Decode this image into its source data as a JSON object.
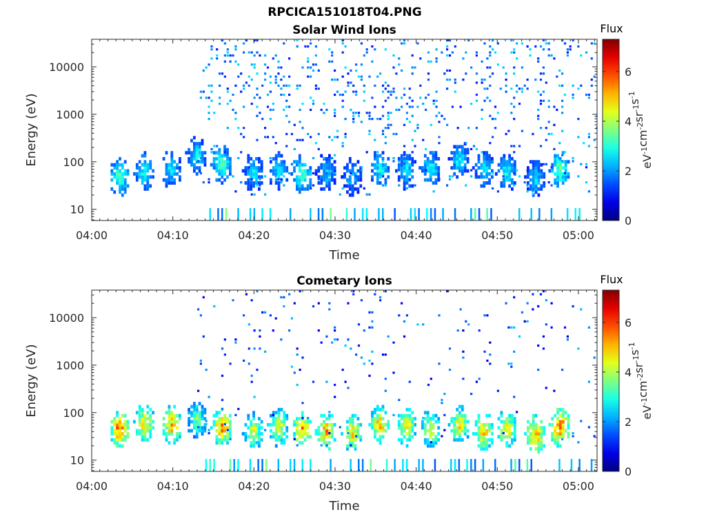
{
  "figure": {
    "title": "RPCICA151018T04.PNG"
  },
  "chart_data": [
    {
      "type": "heatmap",
      "title": "Solar Wind Ions",
      "xlabel": "Time",
      "ylabel": "Energy (eV)",
      "x_ticks": [
        "04:00",
        "04:10",
        "04:20",
        "04:30",
        "04:40",
        "04:50",
        "05:00"
      ],
      "y_ticks": [
        "10",
        "100",
        "1000",
        "10000"
      ],
      "y_scale": "log",
      "colorbar": {
        "label": "Flux",
        "unit": "eV-1cm-2sr-1s-1",
        "ticks": [
          0,
          2,
          4,
          6
        ],
        "range": [
          0,
          7.3
        ]
      },
      "bursts": [
        {
          "time_min": 3.3,
          "energy_ev": 48,
          "peak_flux": 3.3
        },
        {
          "time_min": 6.4,
          "energy_ev": 62,
          "peak_flux": 3.0
        },
        {
          "time_min": 9.7,
          "energy_ev": 70,
          "peak_flux": 2.6
        },
        {
          "time_min": 12.8,
          "energy_ev": 140,
          "peak_flux": 2.7
        },
        {
          "time_min": 15.9,
          "energy_ev": 90,
          "peak_flux": 3.3
        },
        {
          "time_min": 19.8,
          "energy_ev": 60,
          "peak_flux": 2.6
        },
        {
          "time_min": 22.9,
          "energy_ev": 65,
          "peak_flux": 2.6
        },
        {
          "time_min": 25.8,
          "energy_ev": 55,
          "peak_flux": 3.3
        },
        {
          "time_min": 28.8,
          "energy_ev": 60,
          "peak_flux": 2.4
        },
        {
          "time_min": 32.0,
          "energy_ev": 50,
          "peak_flux": 2.2
        },
        {
          "time_min": 35.4,
          "energy_ev": 70,
          "peak_flux": 2.8
        },
        {
          "time_min": 38.7,
          "energy_ev": 65,
          "peak_flux": 2.6
        },
        {
          "time_min": 41.6,
          "energy_ev": 75,
          "peak_flux": 2.8
        },
        {
          "time_min": 45.2,
          "energy_ev": 110,
          "peak_flux": 2.6
        },
        {
          "time_min": 48.2,
          "energy_ev": 70,
          "peak_flux": 2.6
        },
        {
          "time_min": 51.0,
          "energy_ev": 60,
          "peak_flux": 2.8
        },
        {
          "time_min": 54.6,
          "energy_ev": 45,
          "peak_flux": 2.5
        },
        {
          "time_min": 57.6,
          "energy_ev": 70,
          "peak_flux": 3.4
        }
      ]
    },
    {
      "type": "heatmap",
      "title": "Cometary Ions",
      "xlabel": "Time",
      "ylabel": "Energy (eV)",
      "x_ticks": [
        "04:00",
        "04:10",
        "04:20",
        "04:30",
        "04:40",
        "04:50",
        "05:00"
      ],
      "y_ticks": [
        "10",
        "100",
        "1000",
        "10000"
      ],
      "y_scale": "log",
      "colorbar": {
        "label": "Flux",
        "unit": "eV-1cm-2sr-1s-1",
        "ticks": [
          0,
          2,
          4,
          6
        ],
        "range": [
          0,
          7.3
        ]
      },
      "bursts": [
        {
          "time_min": 3.3,
          "energy_ev": 45,
          "peak_flux": 5.6
        },
        {
          "time_min": 6.4,
          "energy_ev": 60,
          "peak_flux": 4.8
        },
        {
          "time_min": 9.7,
          "energy_ev": 55,
          "peak_flux": 5.2
        },
        {
          "time_min": 12.8,
          "energy_ev": 70,
          "peak_flux": 3.6
        },
        {
          "time_min": 15.9,
          "energy_ev": 50,
          "peak_flux": 5.6
        },
        {
          "time_min": 19.8,
          "energy_ev": 40,
          "peak_flux": 4.2
        },
        {
          "time_min": 22.9,
          "energy_ev": 50,
          "peak_flux": 4.4
        },
        {
          "time_min": 25.8,
          "energy_ev": 45,
          "peak_flux": 5.3
        },
        {
          "time_min": 28.8,
          "energy_ev": 40,
          "peak_flux": 5.2
        },
        {
          "time_min": 32.0,
          "energy_ev": 38,
          "peak_flux": 4.8
        },
        {
          "time_min": 35.4,
          "energy_ev": 55,
          "peak_flux": 5.0
        },
        {
          "time_min": 38.7,
          "energy_ev": 50,
          "peak_flux": 4.6
        },
        {
          "time_min": 41.6,
          "energy_ev": 45,
          "peak_flux": 4.4
        },
        {
          "time_min": 45.2,
          "energy_ev": 55,
          "peak_flux": 4.6
        },
        {
          "time_min": 48.2,
          "energy_ev": 40,
          "peak_flux": 5.0
        },
        {
          "time_min": 51.0,
          "energy_ev": 45,
          "peak_flux": 4.8
        },
        {
          "time_min": 54.6,
          "energy_ev": 35,
          "peak_flux": 5.4
        },
        {
          "time_min": 57.6,
          "energy_ev": 50,
          "peak_flux": 5.8
        }
      ]
    }
  ]
}
